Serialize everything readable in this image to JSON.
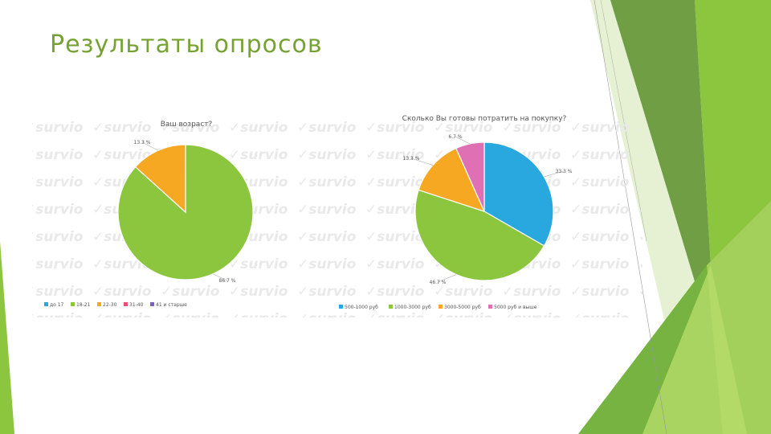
{
  "slide": {
    "title": "Результаты опросов",
    "watermark": "survio",
    "accent_colors": [
      "#76a233",
      "#8cc63f",
      "#a8cf45",
      "#c9e08f"
    ]
  },
  "chart_data": [
    {
      "type": "pie",
      "title": "Ваш возраст?",
      "categories": [
        "до 17",
        "18-21",
        "22-30",
        "31-40",
        "41 и старше"
      ],
      "values": [
        0,
        86.7,
        13.3,
        0,
        0
      ],
      "data_labels": [
        "",
        "86.7 %",
        "13.3 %",
        "",
        ""
      ],
      "colors": [
        "#29a8e0",
        "#8cc63f",
        "#f7a823",
        "#e8507a",
        "#7a62c4"
      ],
      "legend_position": "bottom"
    },
    {
      "type": "pie",
      "title": "Сколько Вы готовы потратить на покупку?",
      "categories": [
        "500-1000 руб",
        "1000-3000 руб",
        "3000-5000 руб",
        "5000 руб и выше"
      ],
      "values": [
        33.3,
        46.7,
        13.3,
        6.7
      ],
      "data_labels": [
        "33.3 %",
        "46.7 %",
        "13.3 %",
        "6.7 %"
      ],
      "colors": [
        "#29a8e0",
        "#8cc63f",
        "#f7a823",
        "#e070b4"
      ],
      "legend_position": "bottom"
    }
  ]
}
